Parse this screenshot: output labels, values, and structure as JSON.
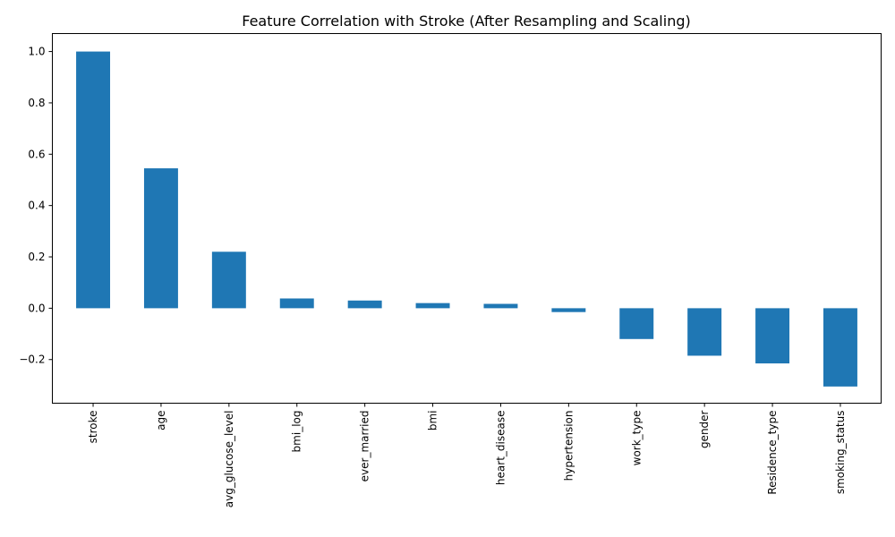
{
  "chart_data": {
    "type": "bar",
    "title": "Feature Correlation with Stroke (After Resampling and Scaling)",
    "xlabel": "",
    "ylabel": "",
    "categories": [
      "stroke",
      "age",
      "avg_glucose_level",
      "bmi_log",
      "ever_married",
      "bmi",
      "heart_disease",
      "hypertension",
      "work_type",
      "gender",
      "Residence_type",
      "smoking_status"
    ],
    "values": [
      1.0,
      0.545,
      0.22,
      0.038,
      0.03,
      0.02,
      0.017,
      -0.015,
      -0.12,
      -0.185,
      -0.215,
      -0.305
    ],
    "ylim": [
      -0.37,
      1.07
    ],
    "yticks": [
      -0.2,
      0.0,
      0.2,
      0.4,
      0.6,
      0.8,
      1.0
    ],
    "ytick_labels": [
      "−0.2",
      "0.0",
      "0.2",
      "0.4",
      "0.6",
      "0.8",
      "1.0"
    ],
    "bar_color": "#1f77b4",
    "grid": false,
    "legend": false
  }
}
